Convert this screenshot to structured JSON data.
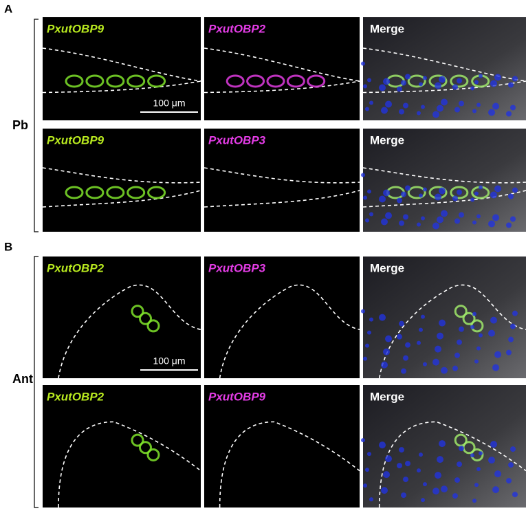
{
  "panels": [
    {
      "label": "A",
      "group": "Pb",
      "rows": [
        {
          "images": [
            {
              "title": "PxutOBP9"
            },
            {
              "title": "PxutOBP2"
            },
            {
              "title": "Merge"
            }
          ],
          "scale_bar": "100 μm"
        },
        {
          "images": [
            {
              "title": "PxutOBP9"
            },
            {
              "title": "PxutOBP3"
            },
            {
              "title": "Merge"
            }
          ]
        }
      ]
    },
    {
      "label": "B",
      "group": "Ant",
      "rows": [
        {
          "images": [
            {
              "title": "PxutOBP2"
            },
            {
              "title": "PxutOBP3"
            },
            {
              "title": "Merge"
            }
          ],
          "scale_bar": "100 μm"
        },
        {
          "images": [
            {
              "title": "PxutOBP2"
            },
            {
              "title": "PxutOBP9"
            },
            {
              "title": "Merge"
            }
          ]
        }
      ]
    }
  ]
}
